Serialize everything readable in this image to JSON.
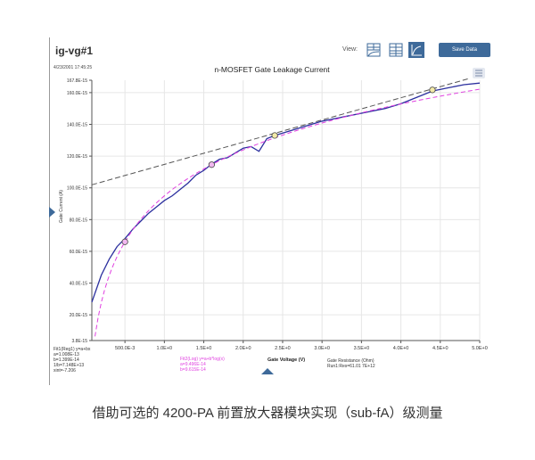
{
  "header": {
    "title": "ig-vg#1",
    "view_label": "View:",
    "save_label": "Save Data",
    "timestamp": "4/23/2001 17:45:25"
  },
  "view_icons": [
    "split-view-icon",
    "table-view-icon",
    "graph-view-icon"
  ],
  "colors": {
    "measured": "#2b2f9e",
    "fit_log": "#e040e0",
    "fit_linear": "#555555",
    "accent": "#3e6a9a"
  },
  "fits": {
    "linear": [
      "Fit1(Reg1) y=a+bx",
      "a=1.008E-13",
      "b=1.399E-14",
      "1/b=7.148E+13",
      "xint=-7.206"
    ],
    "log": [
      "Fit2(Log) y=a+b*log(x)",
      "a=9.496E-14",
      "b=9.615E-14"
    ],
    "resistance": [
      "Gate Resistance (Ohm)",
      "Run1:Res=61.01 7E+12"
    ]
  },
  "caption": "借助可选的 4200-PA 前置放大器模块实现（sub-fA）级测量",
  "chart_data": {
    "type": "line",
    "title": "n-MOSFET Gate Leakage Current",
    "xlabel": "Gate Voltage (V)",
    "ylabel": "Gate Current (A)",
    "xlim": [
      0.08,
      5.0
    ],
    "ylim": [
      3.8,
      167.8
    ],
    "grid": true,
    "x_ticks": [
      0.5,
      1.0,
      1.5,
      2.0,
      2.5,
      3.0,
      3.5,
      4.0,
      4.5,
      5.0
    ],
    "x_tick_labels": [
      "500.0E-3",
      "1.0E+0",
      "1.5E+0",
      "2.0E+0",
      "2.5E+0",
      "3.0E+0",
      "3.5E+0",
      "4.0E+0",
      "4.5E+0",
      "5.0E+0"
    ],
    "y_ticks": [
      3.8,
      20,
      40,
      60,
      80,
      100,
      120,
      140,
      160,
      167.8
    ],
    "y_tick_labels": [
      "3.8E-15",
      "20.0E-15",
      "40.0E-15",
      "60.0E-15",
      "80.0E-15",
      "100.0E-15",
      "120.0E-15",
      "140.0E-15",
      "160.0E-15",
      "167.8E-15"
    ],
    "series": [
      {
        "kind": "measured",
        "unit": "fA",
        "x": [
          0.08,
          0.2,
          0.3,
          0.4,
          0.5,
          0.6,
          0.7,
          0.8,
          0.9,
          1.0,
          1.1,
          1.2,
          1.3,
          1.4,
          1.5,
          1.6,
          1.7,
          1.8,
          1.9,
          2.0,
          2.1,
          2.2,
          2.3,
          2.4,
          2.6,
          2.8,
          3.0,
          3.2,
          3.4,
          3.6,
          3.8,
          4.0,
          4.2,
          4.4,
          4.6,
          4.8,
          5.0
        ],
        "y": [
          28,
          45,
          55,
          63,
          68,
          74,
          79,
          84,
          88,
          92,
          95,
          99,
          103,
          108,
          111,
          115,
          118,
          119,
          122,
          125,
          126,
          123,
          131,
          133,
          136,
          139,
          142,
          144,
          146,
          148,
          150,
          153,
          157,
          161,
          163,
          165,
          166
        ]
      },
      {
        "kind": "fit-log",
        "a_fA": 94.96,
        "b_fA": 96.15
      },
      {
        "kind": "fit-linear",
        "a_fA": 100.8,
        "b_fA_per_V": 13.99
      }
    ],
    "markers": [
      {
        "x": 0.5,
        "y": 66,
        "color": "#f2b8f0"
      },
      {
        "x": 1.6,
        "y": 114.6,
        "color": "#f2b8f0"
      },
      {
        "x": 2.4,
        "y": 133,
        "color": "#f3eaa8"
      },
      {
        "x": 4.4,
        "y": 161.7,
        "color": "#f3eaa8"
      }
    ]
  }
}
